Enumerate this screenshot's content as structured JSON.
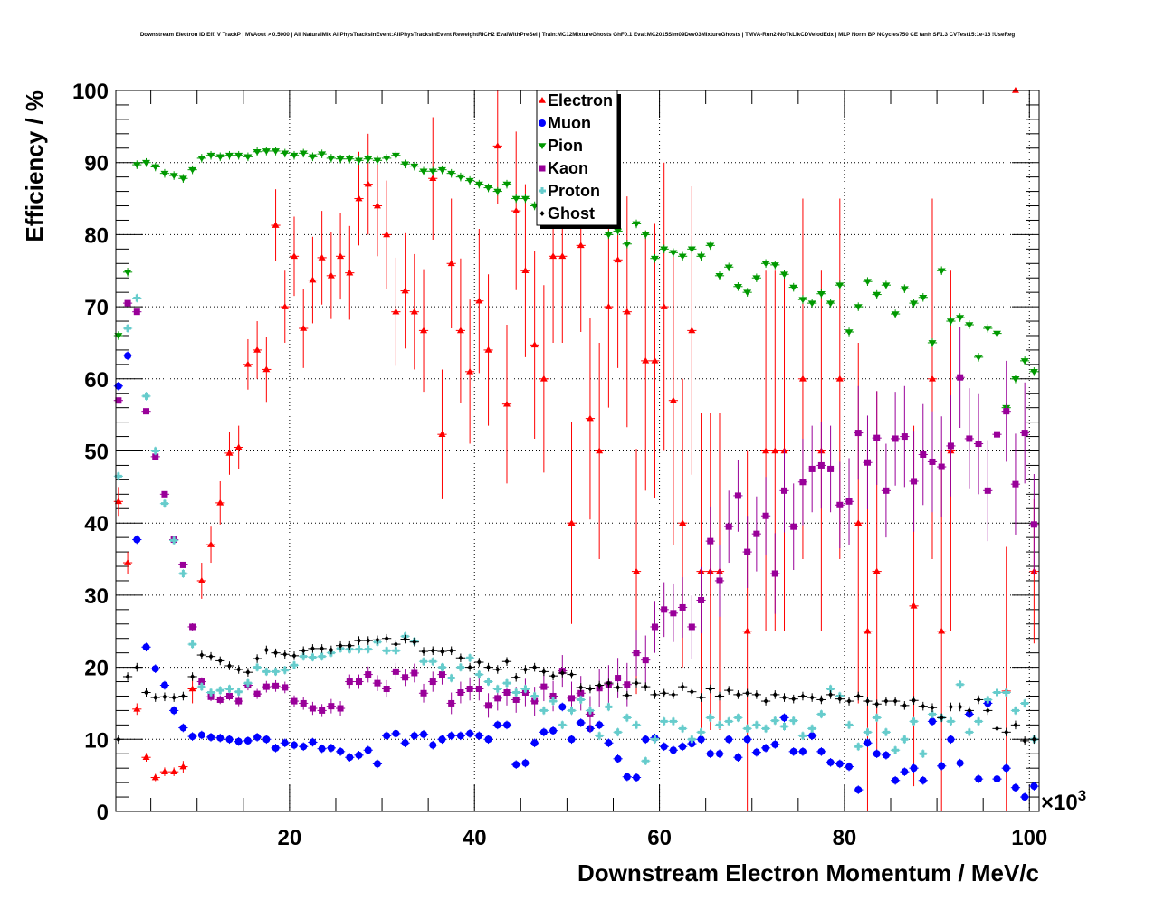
{
  "chart_data": {
    "type": "scatter",
    "title": "Downstream Electron ID Eff. V TrackP | MVAout > 0.5000 | All NaturalMix AllPhysTracksInEvent:AllPhysTracksInEvent ReweightRICH2 EvalWithPreSel | Train:MC12MixtureGhosts GhF0.1 Eval:MC2015Sim09Dev03MixtureGhosts | TMVA-Run2-NoTkLikCDVelodEdx | MLP Norm BP NCycles750 CE tanh SF1.3 CVTest15:1e-16 !UseReg",
    "xlabel": "Downstream Electron Momentum / MeV/c",
    "ylabel": "Efficiency / %",
    "x_multiplier": "×10",
    "x_multiplier_exp": "3",
    "xlim": [
      1.22,
      101.05
    ],
    "ylim": [
      0,
      100
    ],
    "x_bin_start": 1.5,
    "x_bin_step": 1,
    "x_ticks": [
      "20",
      "40",
      "60",
      "80",
      "100"
    ],
    "x_tick_values": [
      20,
      40,
      60,
      80,
      100
    ],
    "y_ticks": [
      "0",
      "10",
      "20",
      "30",
      "40",
      "50",
      "60",
      "70",
      "80",
      "90",
      "100"
    ],
    "y_tick_values": [
      0,
      10,
      20,
      30,
      40,
      50,
      60,
      70,
      80,
      90,
      100
    ],
    "grid": true,
    "legend_position": "top-center",
    "series": [
      {
        "name": "Electron",
        "color": "#ff0000",
        "marker": "triangle-up",
        "values": [
          43,
          34.5,
          14.2,
          7.5,
          4.7,
          5.5,
          5.5,
          6.2,
          17,
          32,
          37,
          42.8,
          49.7,
          50.5,
          62,
          64,
          61.3,
          81.3,
          70,
          77,
          67,
          73.7,
          76.8,
          74.3,
          77,
          74.7,
          85,
          87,
          84,
          80,
          69.3,
          72.2,
          69.3,
          66.7,
          87.8,
          52.3,
          76,
          66.7,
          61,
          70.8,
          64,
          92.3,
          56.5,
          83.3,
          75,
          64.7,
          60,
          77,
          77,
          40,
          78.5,
          54.5,
          50,
          70,
          76.5,
          69.3,
          33.3,
          62.5,
          62.5,
          70,
          57,
          40,
          66.7,
          33.3,
          33.3,
          33.3,
          null,
          null,
          25,
          null,
          50,
          50,
          50,
          null,
          60,
          null,
          50,
          null,
          60,
          null,
          40,
          25,
          33.3,
          null,
          null,
          null,
          28.5,
          null,
          60,
          25,
          50,
          null,
          null,
          null,
          null,
          null,
          16.7,
          100,
          null,
          33.3
        ],
        "err": [
          2,
          1.5,
          0.8,
          0.6,
          0.5,
          0.6,
          0.6,
          0.8,
          2,
          2.5,
          2.5,
          3,
          3,
          3,
          3.5,
          4,
          4.5,
          5,
          5,
          5.5,
          5.5,
          6,
          6.5,
          6,
          6,
          6.5,
          6.5,
          7,
          7,
          7.5,
          7.5,
          8,
          8,
          8.5,
          8.5,
          9,
          9,
          10,
          10,
          10,
          10.5,
          8,
          11,
          11,
          12,
          13,
          13,
          12,
          12,
          14,
          12,
          14,
          15,
          14,
          15,
          16,
          17,
          18,
          19,
          20,
          20,
          20,
          20,
          22,
          22,
          22,
          25,
          25,
          25,
          25,
          25,
          25,
          25,
          25,
          25,
          25,
          25,
          25,
          25,
          25,
          25,
          25,
          25,
          25,
          25,
          25,
          25,
          25,
          25,
          25,
          25,
          25,
          25,
          25,
          25,
          25,
          20,
          0,
          25,
          10
        ]
      },
      {
        "name": "Muon",
        "color": "#0000ff",
        "marker": "circle",
        "values": [
          59,
          63.2,
          37.7,
          22.8,
          19.8,
          17.5,
          14,
          11.6,
          10.4,
          10.6,
          10.3,
          10.2,
          10,
          9.7,
          9.8,
          10.3,
          10,
          8.8,
          9.5,
          9.2,
          9,
          9.6,
          8.7,
          8.8,
          8.3,
          7.5,
          7.8,
          8.5,
          6.6,
          10.5,
          10.8,
          9.5,
          10.5,
          10.7,
          9.2,
          10,
          10.5,
          10.5,
          10.8,
          10.5,
          10,
          12,
          12,
          6.5,
          6.7,
          9.5,
          11,
          11.2,
          14.5,
          10,
          12.3,
          11.5,
          12,
          9.5,
          7.3,
          4.8,
          4.7,
          10,
          10.2,
          9,
          8.5,
          9,
          9.4,
          10,
          8,
          8,
          10,
          7.5,
          10,
          8.2,
          8.8,
          9.3,
          13,
          8.3,
          8.3,
          10.5,
          8.3,
          6.8,
          6.6,
          6.2,
          3,
          9.5,
          8,
          7.8,
          4.3,
          5.5,
          6,
          4.3,
          12.5,
          6.3,
          10,
          6.7,
          13.5,
          4.5,
          15,
          4.5,
          6,
          3.3,
          2,
          3.5
        ]
      },
      {
        "name": "Pion",
        "color": "#009900",
        "marker": "triangle-down",
        "values": [
          66,
          74.8,
          89.7,
          90,
          89.4,
          88.5,
          88.2,
          87.8,
          89,
          90.6,
          91,
          90.8,
          91,
          91,
          90.8,
          91.5,
          91.6,
          91.6,
          91.3,
          91,
          91.3,
          90.8,
          91.2,
          90.6,
          90.5,
          90.5,
          90.3,
          90.5,
          90.3,
          90.6,
          91,
          89.8,
          89.5,
          88.8,
          88.8,
          89,
          88.5,
          88,
          87.5,
          87,
          86.5,
          86,
          87,
          85,
          85,
          84,
          84,
          84.5,
          83,
          82.5,
          83,
          82,
          81.5,
          80,
          80.5,
          78.7,
          81.5,
          80,
          76.7,
          78,
          77.5,
          77,
          78,
          77,
          78.5,
          74.3,
          75.5,
          72.8,
          72,
          74,
          76,
          75.8,
          74.5,
          72.7,
          71,
          70.5,
          71.8,
          70.5,
          73,
          66.5,
          70,
          73.5,
          71.7,
          73,
          69,
          72.5,
          70.5,
          71.3,
          65,
          75,
          68,
          68.5,
          67.5,
          63,
          67,
          66.3,
          56,
          60,
          62.5,
          61
        ]
      },
      {
        "name": "Kaon",
        "color": "#990099",
        "marker": "square",
        "values": [
          57,
          70.5,
          69.3,
          55.5,
          49.2,
          44,
          37.7,
          34.2,
          25.6,
          18,
          15.9,
          15.5,
          16,
          15.3,
          17.5,
          16.3,
          17.3,
          17.4,
          17.2,
          15.3,
          15,
          14.3,
          14,
          14.6,
          14.3,
          18,
          18,
          19,
          17.8,
          17,
          19.4,
          18.6,
          19.2,
          16.4,
          18,
          19,
          15,
          16.5,
          17,
          17,
          14.7,
          15.7,
          16.5,
          15.5,
          16.5,
          15.3,
          17.3,
          16,
          19.5,
          15.7,
          16.4,
          13.5,
          17.1,
          17.6,
          18.5,
          17.6,
          22,
          21,
          25.6,
          28,
          27.5,
          28.3,
          25.6,
          29.3,
          37.5,
          32,
          39.5,
          43.8,
          36,
          38.5,
          41,
          33,
          44.5,
          39.5,
          45.7,
          47.5,
          48,
          47.5,
          42.5,
          43,
          52.5,
          48.4,
          51.8,
          44.5,
          51.7,
          52,
          45.8,
          49.5,
          48.5,
          47.8,
          50.7,
          60.2,
          51.7,
          51,
          44.5,
          52.3,
          55.5,
          45.4,
          52.5,
          39.8
        ],
        "err": [
          0.4,
          0.4,
          0.4,
          0.4,
          0.4,
          0.4,
          0.4,
          0.4,
          0.5,
          0.6,
          0.6,
          0.6,
          0.6,
          0.7,
          0.7,
          0.7,
          0.8,
          0.8,
          0.8,
          0.8,
          0.9,
          0.9,
          0.9,
          1,
          1,
          1,
          1,
          1.1,
          1.1,
          1.2,
          1.2,
          1.2,
          1.3,
          1.3,
          1.4,
          1.4,
          1.5,
          1.5,
          1.6,
          1.6,
          1.7,
          1.7,
          1.8,
          1.8,
          1.9,
          2,
          2,
          2.1,
          2.2,
          2.3,
          2.4,
          2.5,
          2.6,
          2.7,
          2.8,
          3,
          3.2,
          3.4,
          3.6,
          3.8,
          4,
          4.2,
          4.4,
          4.6,
          4.8,
          5,
          5,
          5,
          5,
          5.2,
          5.4,
          5.6,
          5.8,
          6,
          6,
          6,
          6,
          6,
          6,
          6,
          6.5,
          6.5,
          6.5,
          6.5,
          6.5,
          7,
          7,
          7,
          7,
          7,
          7,
          7,
          7,
          7,
          7,
          7,
          7,
          7,
          7,
          7
        ]
      },
      {
        "name": "Proton",
        "color": "#66cccc",
        "marker": "cross",
        "values": [
          46.5,
          67,
          71.2,
          57.6,
          50,
          42.7,
          37.6,
          33,
          23.2,
          17.3,
          16.5,
          16.8,
          17,
          16.6,
          17.8,
          20,
          19.4,
          19.4,
          19.6,
          20.3,
          21.5,
          21.4,
          21.5,
          22,
          22.6,
          22.5,
          22.5,
          22.5,
          23.5,
          22.3,
          22.3,
          24.3,
          23.6,
          20.8,
          20.8,
          20,
          18.5,
          20,
          21.3,
          19,
          18,
          17,
          17.8,
          16.5,
          17,
          16,
          14,
          15.3,
          12,
          14,
          15.5,
          14,
          10.5,
          14.5,
          11,
          13,
          12,
          7,
          10,
          12.5,
          12.5,
          11.5,
          10,
          11,
          13,
          12,
          12.5,
          13,
          11.5,
          12,
          11.5,
          12.6,
          11.8,
          12.6,
          10.5,
          11.5,
          13.5,
          17,
          16,
          12,
          9,
          11,
          13,
          11,
          8.5,
          10,
          12.5,
          8,
          13.5,
          13,
          12.5,
          17.6,
          11,
          12.5,
          15.5,
          16.5,
          16.5,
          14,
          15,
          10
        ]
      },
      {
        "name": "Ghost",
        "color": "#000000",
        "marker": "diamond",
        "values": [
          10,
          18.7,
          20,
          16.5,
          15.8,
          15.9,
          15.8,
          16,
          18.7,
          21.7,
          21.5,
          20.9,
          20.2,
          19.7,
          19.3,
          21.2,
          22.4,
          22,
          21.8,
          21.6,
          22.3,
          22.6,
          22.6,
          22.4,
          23,
          23,
          23.7,
          23.7,
          23.8,
          24,
          23.2,
          23.9,
          23.5,
          22.2,
          22.3,
          22.2,
          22.3,
          21.3,
          20,
          20.7,
          20,
          19.7,
          20.8,
          18.6,
          19.7,
          20,
          19.4,
          18.8,
          19.2,
          19,
          17.2,
          17,
          17.5,
          17.8,
          17.2,
          16.1,
          17.8,
          17.3,
          16.2,
          16.4,
          16.2,
          17.3,
          16.6,
          15.8,
          17,
          16,
          16.8,
          16.2,
          16.4,
          16.2,
          15.3,
          16.2,
          15.8,
          15.6,
          16,
          15.8,
          15.5,
          16.2,
          15.6,
          15.3,
          16,
          15.3,
          14.9,
          15.3,
          15.3,
          14.7,
          15.4,
          14.6,
          14.4,
          13,
          14.5,
          14.5,
          14,
          15.5,
          14,
          11.5,
          11,
          12,
          9.8,
          10
        ]
      }
    ]
  }
}
